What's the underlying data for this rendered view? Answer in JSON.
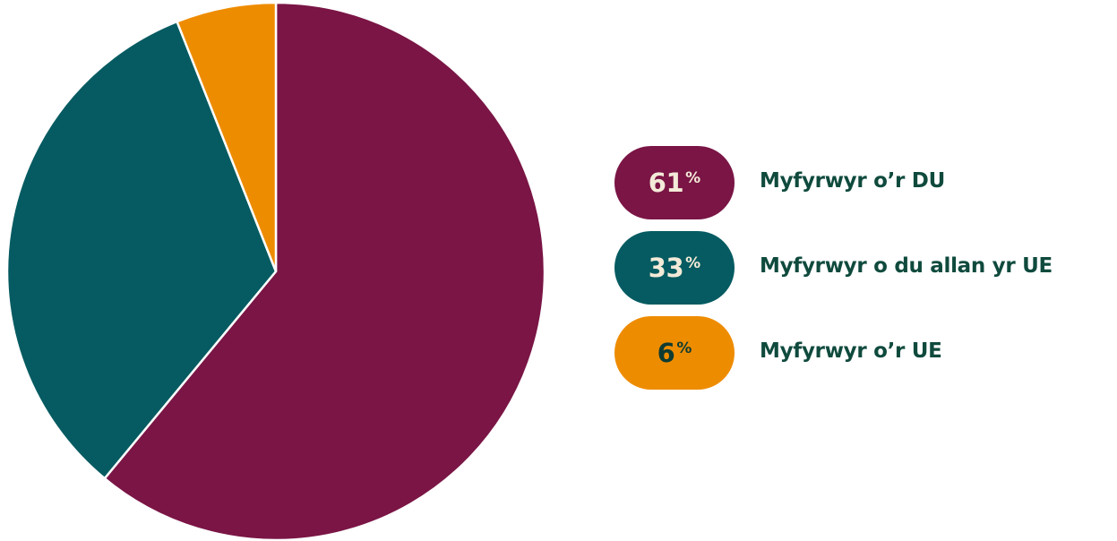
{
  "chart_data": {
    "type": "pie",
    "slices": [
      {
        "label": "Myfyrwyr o’r DU",
        "value": 61,
        "pct_text": "61",
        "color": "#7a1545",
        "pill_text_color": "#f3ead8",
        "label_color": "#0f4a3d"
      },
      {
        "label": "Myfyrwyr o du allan yr UE",
        "value": 33,
        "pct_text": "33",
        "color": "#055b61",
        "pill_text_color": "#f3ead8",
        "label_color": "#0f4a3d"
      },
      {
        "label": "Myfyrwyr o’r UE",
        "value": 6,
        "pct_text": "6",
        "color": "#ee8c00",
        "pill_text_color": "#0f3c32",
        "label_color": "#0f4a3d"
      }
    ],
    "percent_sign": "%",
    "start_angle": "12 o'clock",
    "direction": "clockwise",
    "legend_position": "right"
  }
}
